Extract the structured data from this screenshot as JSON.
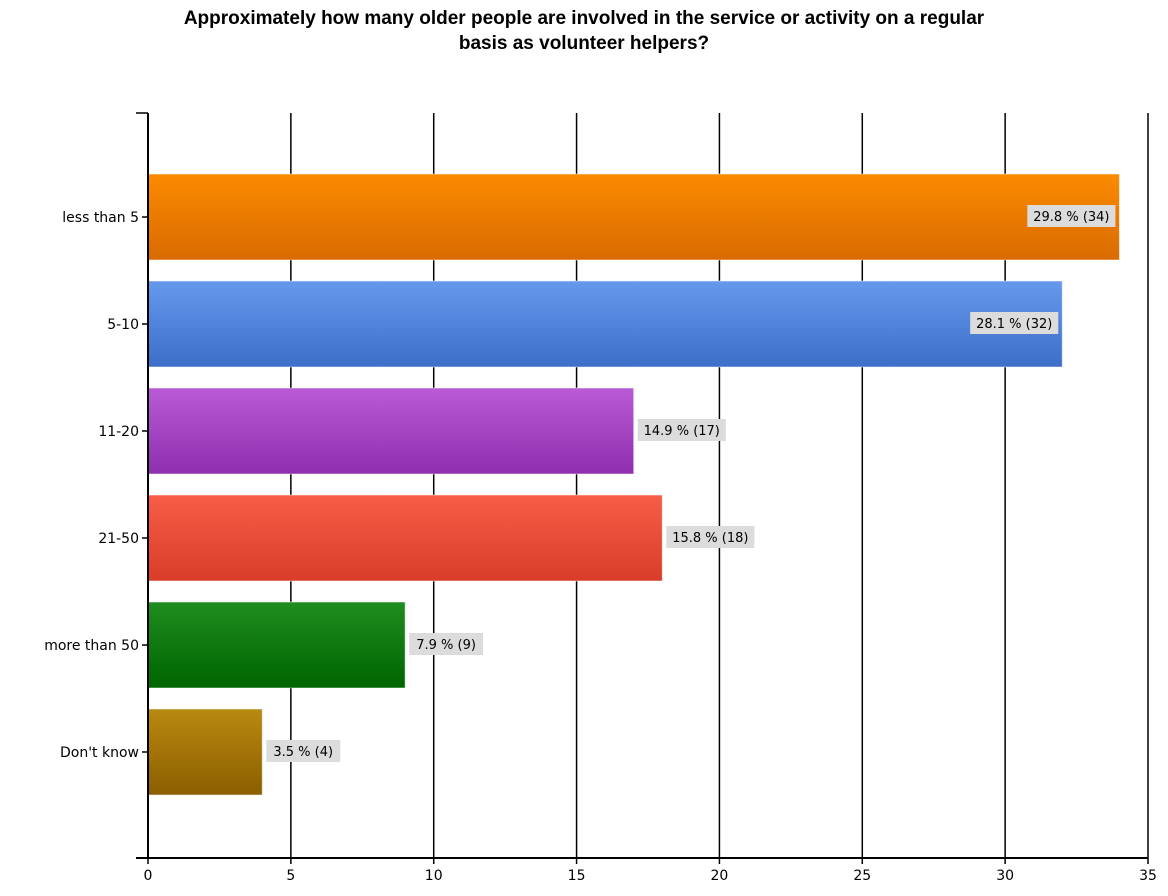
{
  "chart_data": {
    "type": "bar",
    "orientation": "horizontal",
    "title_lines": [
      "Approximately how many older people are involved in the service or activity on a regular",
      "basis as volunteer helpers?"
    ],
    "categories": [
      "less than 5",
      "5-10",
      "11-20",
      "21-50",
      "more than 50",
      "Don't know"
    ],
    "values": [
      34,
      32,
      17,
      18,
      9,
      4
    ],
    "data_labels": [
      "29.8 % (34)",
      "28.1 % (32)",
      "14.9 % (17)",
      "15.8 % (18)",
      "7.9 % (9)",
      "3.5 % (4)"
    ],
    "colors": [
      [
        "#fb8b00",
        "#d96a00"
      ],
      [
        "#6599ec",
        "#3d6ec9"
      ],
      [
        "#b95bd6",
        "#8e2fae"
      ],
      [
        "#f85d47",
        "#d83d2a"
      ],
      [
        "#1f8d1f",
        "#006500"
      ],
      [
        "#b88a11",
        "#8c5e00"
      ]
    ],
    "xlim": [
      0,
      35
    ],
    "xticks": [
      0,
      5,
      10,
      15,
      20,
      25,
      30,
      35
    ],
    "grid": true,
    "legend": "none"
  }
}
